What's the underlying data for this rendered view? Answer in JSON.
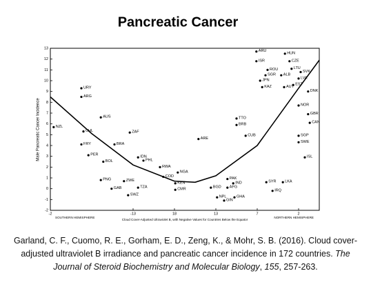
{
  "chart_data": {
    "type": "scatter",
    "title": "Pancreatic Cancer",
    "y_label": "Male Pancreatic Cancer Incidence",
    "x_label": "Cloud Cover-Adjusted Ultraviolet B, with Negative Values for Countries Below the Equator",
    "x_left_note": "SOUTHERN HEMISPHERE",
    "x_right_note": "NORTHERN HEMISPHERE",
    "color": "#000000",
    "xlim": [
      0,
      6.5
    ],
    "ylim": [
      -2,
      13
    ],
    "xticks": [
      {
        "value": 0,
        "label": "-2"
      },
      {
        "value": 2,
        "label": "-13"
      },
      {
        "value": 3,
        "label": "18"
      },
      {
        "value": 4,
        "label": "13"
      },
      {
        "value": 5,
        "label": "7"
      },
      {
        "value": 6,
        "label": "2"
      }
    ],
    "yticks": [
      -2,
      -1,
      0,
      1,
      2,
      3,
      4,
      5,
      6,
      7,
      8,
      9,
      10,
      11,
      12,
      13
    ],
    "point_labels": [
      "URY",
      "ARG",
      "AUS",
      "NZL",
      "CHL",
      "ZAF",
      "FRY",
      "BRA",
      "PER",
      "BOL",
      "IDN",
      "PHL",
      "PNG",
      "GAB",
      "ZWE",
      "SWZ",
      "TZA",
      "RWA",
      "COD",
      "CMR",
      "KEN",
      "NGA",
      "ARU",
      "HUN",
      "ISR",
      "CZE",
      "LTU",
      "ROU",
      "SVK",
      "SGR",
      "ALB",
      "LVA",
      "JPN",
      "EST",
      "KAZ",
      "AUT",
      "DNK",
      "NOR",
      "GBR",
      "CAN",
      "SGP",
      "SWE",
      "ISL",
      "TTO",
      "BRB",
      "ARE",
      "CUB",
      "IND",
      "PAK",
      "AFG",
      "BGD",
      "NPL",
      "GIN",
      "GHA",
      "SYR",
      "LKA",
      "IRQ"
    ],
    "x": [
      0.75,
      0.75,
      1.22,
      0.08,
      0.8,
      1.92,
      0.75,
      1.55,
      0.92,
      1.28,
      2.12,
      2.25,
      1.22,
      1.48,
      1.78,
      1.88,
      2.12,
      2.65,
      2.73,
      3.02,
      3.02,
      3.08,
      4.98,
      5.67,
      4.98,
      5.78,
      5.83,
      5.25,
      6.05,
      5.2,
      5.58,
      6.0,
      5.07,
      5.87,
      5.12,
      5.65,
      6.23,
      6.0,
      6.23,
      6.27,
      6.0,
      6.0,
      6.15,
      4.5,
      4.5,
      3.58,
      4.72,
      4.42,
      4.28,
      4.28,
      3.88,
      4.03,
      4.2,
      4.45,
      5.22,
      5.62,
      5.37
    ],
    "values": [
      9.3,
      8.5,
      6.6,
      5.7,
      5.3,
      5.2,
      4.1,
      4.1,
      3.1,
      2.5,
      2.9,
      2.6,
      0.8,
      0.0,
      0.7,
      -0.6,
      0.1,
      2.0,
      1.1,
      -0.1,
      0.5,
      1.5,
      12.7,
      12.5,
      11.8,
      11.8,
      11.1,
      11.0,
      10.8,
      10.5,
      10.5,
      10.2,
      10.0,
      9.6,
      9.4,
      9.4,
      9.0,
      7.7,
      6.9,
      6.1,
      4.9,
      4.3,
      2.9,
      6.5,
      5.9,
      4.6,
      4.9,
      0.5,
      0.9,
      0.1,
      0.1,
      -0.8,
      -1.1,
      -0.8,
      0.6,
      0.6,
      -0.2
    ],
    "curve": {
      "x": [
        0,
        1,
        2,
        3,
        3.5,
        4,
        5,
        6,
        6.5
      ],
      "values": [
        8.5,
        5.1,
        2.2,
        0.7,
        0.6,
        1.2,
        4.0,
        9.3,
        11.9
      ]
    }
  },
  "citation": [
    "Garland, C. F., Cuomo, R. E., Gorham, E. D., Zeng, K., & Mohr, S. B. (2016). Cloud cover-adjusted ultraviolet B irradiance and pancreatic cancer incidence in 172 countries. ",
    "The Journal of Steroid Biochemistry and Molecular Biology",
    ", ",
    "155",
    ", 257-263."
  ]
}
